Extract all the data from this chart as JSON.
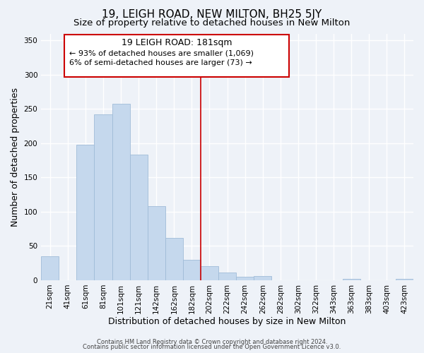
{
  "title": "19, LEIGH ROAD, NEW MILTON, BH25 5JY",
  "subtitle": "Size of property relative to detached houses in New Milton",
  "xlabel": "Distribution of detached houses by size in New Milton",
  "ylabel": "Number of detached properties",
  "footer_line1": "Contains HM Land Registry data © Crown copyright and database right 2024.",
  "footer_line2": "Contains public sector information licensed under the Open Government Licence v3.0.",
  "bin_labels": [
    "21sqm",
    "41sqm",
    "61sqm",
    "81sqm",
    "101sqm",
    "121sqm",
    "142sqm",
    "162sqm",
    "182sqm",
    "202sqm",
    "222sqm",
    "242sqm",
    "262sqm",
    "282sqm",
    "302sqm",
    "322sqm",
    "343sqm",
    "363sqm",
    "383sqm",
    "403sqm",
    "423sqm"
  ],
  "bar_values": [
    35,
    0,
    198,
    242,
    257,
    183,
    108,
    62,
    30,
    21,
    11,
    5,
    6,
    0,
    0,
    0,
    0,
    2,
    0,
    0,
    2
  ],
  "bar_color": "#c5d8ed",
  "bar_edge_color": "#a0bcd8",
  "vline_x": 8.5,
  "vline_color": "#cc0000",
  "annotation_title": "19 LEIGH ROAD: 181sqm",
  "annotation_line2": "← 93% of detached houses are smaller (1,069)",
  "annotation_line3": "6% of semi-detached houses are larger (73) →",
  "annotation_box_color": "#cc0000",
  "ylim": [
    0,
    360
  ],
  "yticks": [
    0,
    50,
    100,
    150,
    200,
    250,
    300,
    350
  ],
  "bg_color": "#eef2f8",
  "grid_color": "#ffffff",
  "title_fontsize": 11,
  "subtitle_fontsize": 9.5,
  "axis_label_fontsize": 9,
  "tick_fontsize": 7.5,
  "annotation_title_fontsize": 9,
  "annotation_text_fontsize": 8
}
